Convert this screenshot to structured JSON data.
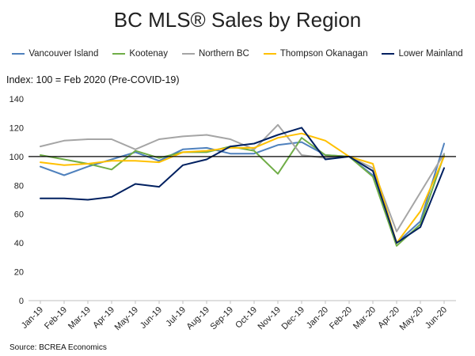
{
  "chart_data": {
    "type": "line",
    "title": "BC MLS® Sales by Region",
    "subtitle": "Index: 100 = Feb 2020 (Pre-COVID-19)",
    "source": "Source: BCREA Economics",
    "xlabel": "",
    "ylabel": "",
    "ylim": [
      0,
      140
    ],
    "yticks": [
      "0",
      "20",
      "40",
      "60",
      "80",
      "100",
      "120",
      "140"
    ],
    "reference_line": 100,
    "legend_position": "top",
    "grid": false,
    "categories": [
      "Jan-19",
      "Feb-19",
      "Mar-19",
      "Apr-19",
      "May-19",
      "Jun-19",
      "Jul-19",
      "Aug-19",
      "Sep-19",
      "Oct-19",
      "Nov-19",
      "Dec-19",
      "Jan-20",
      "Feb-20",
      "Mar-20",
      "Apr-20",
      "May-20",
      "Jun-20"
    ],
    "series": [
      {
        "name": "Vancouver Island",
        "color": "#4f81bd",
        "values": [
          93,
          87,
          93,
          98,
          103,
          97,
          105,
          106,
          102,
          102,
          108,
          110,
          101,
          100,
          87,
          40,
          55,
          109
        ]
      },
      {
        "name": "Kootenay",
        "color": "#70ad47",
        "values": [
          101,
          98,
          95,
          91,
          104,
          99,
          103,
          103,
          107,
          104,
          88,
          113,
          101,
          100,
          86,
          38,
          53,
          101
        ]
      },
      {
        "name": "Northern BC",
        "color": "#a5a5a5",
        "values": [
          107,
          111,
          112,
          112,
          105,
          112,
          114,
          115,
          112,
          105,
          122,
          101,
          99,
          100,
          92,
          48,
          75,
          102
        ]
      },
      {
        "name": "Thompson Okanagan",
        "color": "#ffc000",
        "values": [
          96,
          94,
          95,
          97,
          97,
          96,
          103,
          104,
          106,
          106,
          113,
          116,
          111,
          100,
          95,
          40,
          62,
          100
        ]
      },
      {
        "name": "Lower Mainland",
        "color": "#002060",
        "values": [
          71,
          71,
          70,
          72,
          81,
          79,
          94,
          98,
          107,
          109,
          115,
          120,
          98,
          100,
          90,
          40,
          51,
          92
        ]
      }
    ]
  }
}
